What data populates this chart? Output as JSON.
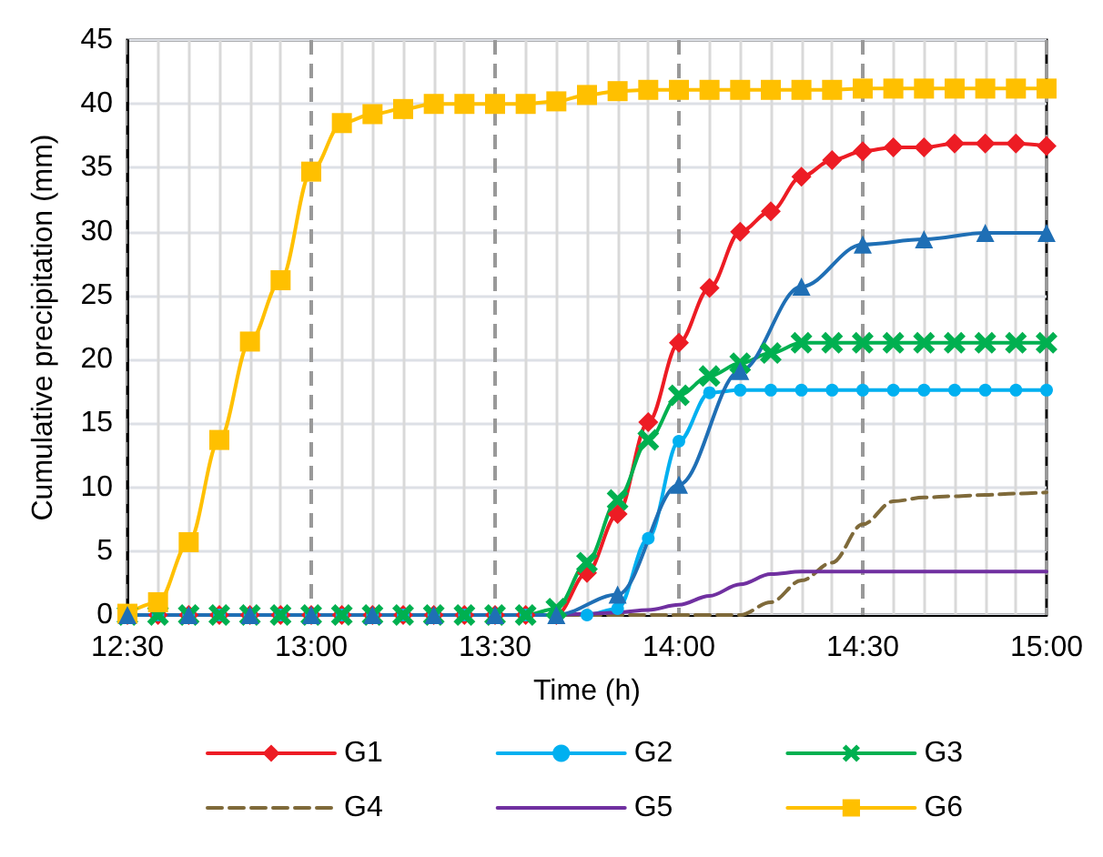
{
  "chart_data": {
    "type": "line",
    "xlabel": "Time (h)",
    "ylabel": "Cumulative precipitation (mm)",
    "x": [
      12.5,
      12.5833,
      12.6667,
      12.75,
      12.8333,
      12.9167,
      13,
      13.0833,
      13.1667,
      13.25,
      13.3333,
      13.4167,
      13.5,
      13.5833,
      13.6667,
      13.75,
      13.8333,
      13.9167,
      14,
      14.0833,
      14.1667,
      14.25,
      14.3333,
      14.4167,
      14.5,
      14.5833,
      14.6667,
      14.75,
      14.8333,
      14.9167,
      15
    ],
    "series": [
      {
        "name": "G1",
        "color": "#ed1c24",
        "marker": "diamond",
        "values": [
          0,
          0,
          0,
          0,
          0,
          0,
          0,
          0,
          0,
          0,
          0,
          0,
          0,
          0,
          0,
          3.3,
          7.9,
          15.1,
          21.3,
          25.6,
          30.0,
          31.6,
          34.3,
          35.6,
          36.3,
          36.6,
          36.6,
          36.9,
          36.9,
          36.9,
          36.7
        ]
      },
      {
        "name": "G2",
        "color": "#00b0f0",
        "marker": "circle",
        "values": [
          0,
          0,
          0,
          0,
          0,
          0,
          0,
          0,
          0,
          0,
          0,
          0,
          0,
          0,
          0,
          0,
          0.5,
          6.0,
          13.6,
          17.4,
          17.6,
          17.6,
          17.6,
          17.6,
          17.6,
          17.6,
          17.6,
          17.6,
          17.6,
          17.6,
          17.6
        ]
      },
      {
        "name": "G3",
        "color": "#00b050",
        "marker": "cross",
        "values": [
          0,
          0,
          0,
          0,
          0,
          0,
          0,
          0,
          0,
          0,
          0,
          0,
          0,
          0,
          0.5,
          4.1,
          9.0,
          13.7,
          17.2,
          18.7,
          19.7,
          20.5,
          21.3,
          21.3,
          21.3,
          21.3,
          21.3,
          21.3,
          21.3,
          21.3,
          21.3
        ]
      },
      {
        "name": "G4",
        "color": "#7f6a3a",
        "marker": "none",
        "line_style": "dashed",
        "values": [
          0,
          0,
          0,
          0,
          0,
          0,
          0,
          0,
          0,
          0,
          0,
          0,
          0,
          0,
          0,
          0,
          0,
          0,
          0,
          0,
          0,
          1.0,
          2.7,
          4.1,
          7.1,
          8.9,
          9.2,
          9.3,
          9.4,
          9.5,
          9.6
        ]
      },
      {
        "name": "G5",
        "color": "#7030a0",
        "marker": "none",
        "values": [
          null,
          null,
          null,
          null,
          null,
          null,
          null,
          null,
          null,
          null,
          null,
          null,
          null,
          0,
          0,
          0.1,
          0.2,
          0.4,
          0.8,
          1.5,
          2.4,
          3.2,
          3.4,
          3.4,
          3.4,
          3.4,
          3.4,
          3.4,
          3.4,
          3.4,
          3.4
        ]
      },
      {
        "name": "G6",
        "color": "#ffc000",
        "marker": "square",
        "values": [
          0.1,
          1.0,
          5.7,
          13.7,
          21.4,
          26.2,
          34.7,
          38.5,
          39.2,
          39.6,
          40.0,
          40.0,
          40.0,
          40.0,
          40.2,
          40.7,
          41.0,
          41.1,
          41.1,
          41.1,
          41.1,
          41.1,
          41.1,
          41.1,
          41.2,
          41.2,
          41.2,
          41.2,
          41.2,
          41.2,
          41.2
        ]
      },
      {
        "color": "#1f6fb5",
        "marker": "triangle",
        "x": [
          12.5,
          12.6667,
          12.8333,
          13,
          13.1667,
          13.3333,
          13.5,
          13.6667,
          13.8333,
          14,
          14.1667,
          14.3333,
          14.5,
          14.6667,
          14.8333,
          15
        ],
        "values": [
          0,
          0,
          0,
          0,
          0,
          0,
          0,
          0,
          1.6,
          10.2,
          19.1,
          25.7,
          29.0,
          29.4,
          29.9,
          29.9
        ]
      }
    ],
    "xlim": [
      12.5,
      15
    ],
    "xticks": [
      {
        "value": 12.5,
        "label": "12:30"
      },
      {
        "value": 13,
        "label": "13:00"
      },
      {
        "value": 13.5,
        "label": "13:30"
      },
      {
        "value": 14,
        "label": "14:00"
      },
      {
        "value": 14.5,
        "label": "14:30"
      },
      {
        "value": 15,
        "label": "15:00"
      }
    ],
    "ylim": [
      0,
      45
    ],
    "yticks": [
      0,
      5,
      10,
      15,
      20,
      25,
      30,
      35,
      40,
      45
    ],
    "grid": true,
    "legend": "bottom",
    "line_style": "solid"
  }
}
